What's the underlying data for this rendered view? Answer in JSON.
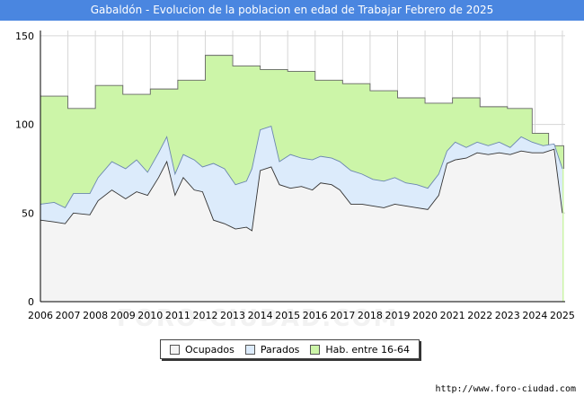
{
  "header": {
    "title": "Gabaldón - Evolucion de la poblacion en edad de Trabajar Febrero de 2025"
  },
  "footer": {
    "source": "http://www.foro-ciudad.com"
  },
  "watermark": {
    "text": "FORO-CIUDAD.COM"
  },
  "colors": {
    "ocupados": "#f4f4f4",
    "parados": "#dcebfb",
    "hab": "#ccf5a8",
    "line": "#333333",
    "title_bg": "#4a86e0"
  },
  "legend": [
    {
      "label": "Ocupados",
      "color": "#f4f4f4"
    },
    {
      "label": "Parados",
      "color": "#dcebfb"
    },
    {
      "label": "Hab. entre 16-64",
      "color": "#ccf5a8"
    }
  ],
  "chart_data": {
    "type": "area",
    "title": "Gabaldón - Evolucion de la poblacion en edad de Trabajar Febrero de 2025",
    "xlabel": "",
    "ylabel": "",
    "x_ticks": [
      "2006",
      "2007",
      "2008",
      "2009",
      "2010",
      "2011",
      "2012",
      "2013",
      "2014",
      "2015",
      "2016",
      "2017",
      "2018",
      "2019",
      "2020",
      "2021",
      "2022",
      "2023",
      "2024",
      "2025"
    ],
    "y_ticks": [
      0,
      50,
      100,
      150
    ],
    "xlim": [
      2006,
      2025.1
    ],
    "ylim": [
      0,
      153
    ],
    "grid": true,
    "legend_position": "bottom-center",
    "series": [
      {
        "name": "Hab. entre 16-64",
        "points": [
          [
            2006,
            116
          ],
          [
            2007,
            109
          ],
          [
            2008,
            122
          ],
          [
            2009,
            117
          ],
          [
            2010,
            120
          ],
          [
            2011,
            125
          ],
          [
            2012,
            139
          ],
          [
            2013,
            133
          ],
          [
            2014,
            131
          ],
          [
            2015,
            130
          ],
          [
            2016,
            125
          ],
          [
            2017,
            123
          ],
          [
            2018,
            119
          ],
          [
            2019,
            115
          ],
          [
            2020,
            112
          ],
          [
            2021,
            115
          ],
          [
            2022,
            110
          ],
          [
            2023,
            109
          ],
          [
            2023.9,
            95
          ],
          [
            2024.5,
            88
          ],
          [
            2025.05,
            75
          ]
        ]
      },
      {
        "name": "Parados",
        "points": [
          [
            2006,
            55
          ],
          [
            2006.5,
            56
          ],
          [
            2006.9,
            53
          ],
          [
            2007.2,
            61
          ],
          [
            2007.8,
            61
          ],
          [
            2008.1,
            70
          ],
          [
            2008.6,
            79
          ],
          [
            2009.1,
            75
          ],
          [
            2009.5,
            80
          ],
          [
            2009.9,
            73
          ],
          [
            2010.3,
            84
          ],
          [
            2010.6,
            93
          ],
          [
            2010.9,
            72
          ],
          [
            2011.2,
            83
          ],
          [
            2011.6,
            80
          ],
          [
            2011.9,
            76
          ],
          [
            2012.3,
            78
          ],
          [
            2012.7,
            75
          ],
          [
            2013.1,
            66
          ],
          [
            2013.5,
            68
          ],
          [
            2013.7,
            75
          ],
          [
            2014,
            97
          ],
          [
            2014.4,
            99
          ],
          [
            2014.7,
            79
          ],
          [
            2015.1,
            83
          ],
          [
            2015.5,
            81
          ],
          [
            2015.9,
            80
          ],
          [
            2016.2,
            82
          ],
          [
            2016.6,
            81
          ],
          [
            2016.9,
            79
          ],
          [
            2017.3,
            74
          ],
          [
            2017.7,
            72
          ],
          [
            2018.1,
            69
          ],
          [
            2018.5,
            68
          ],
          [
            2018.9,
            70
          ],
          [
            2019.3,
            67
          ],
          [
            2019.7,
            66
          ],
          [
            2020.1,
            64
          ],
          [
            2020.5,
            72
          ],
          [
            2020.8,
            85
          ],
          [
            2021.1,
            90
          ],
          [
            2021.5,
            87
          ],
          [
            2021.9,
            90
          ],
          [
            2022.3,
            88
          ],
          [
            2022.7,
            90
          ],
          [
            2023.1,
            87
          ],
          [
            2023.5,
            93
          ],
          [
            2023.9,
            90
          ],
          [
            2024.3,
            88
          ],
          [
            2024.7,
            89
          ],
          [
            2025,
            75
          ]
        ]
      },
      {
        "name": "Ocupados",
        "points": [
          [
            2006,
            46
          ],
          [
            2006.5,
            45
          ],
          [
            2006.9,
            44
          ],
          [
            2007.2,
            50
          ],
          [
            2007.8,
            49
          ],
          [
            2008.1,
            57
          ],
          [
            2008.6,
            63
          ],
          [
            2009.1,
            58
          ],
          [
            2009.5,
            62
          ],
          [
            2009.9,
            60
          ],
          [
            2010.3,
            70
          ],
          [
            2010.6,
            79
          ],
          [
            2010.9,
            60
          ],
          [
            2011.2,
            70
          ],
          [
            2011.6,
            63
          ],
          [
            2011.9,
            62
          ],
          [
            2012.3,
            46
          ],
          [
            2012.7,
            44
          ],
          [
            2013.1,
            41
          ],
          [
            2013.5,
            42
          ],
          [
            2013.7,
            40
          ],
          [
            2014,
            74
          ],
          [
            2014.4,
            76
          ],
          [
            2014.7,
            66
          ],
          [
            2015.1,
            64
          ],
          [
            2015.5,
            65
          ],
          [
            2015.9,
            63
          ],
          [
            2016.2,
            67
          ],
          [
            2016.6,
            66
          ],
          [
            2016.9,
            63
          ],
          [
            2017.3,
            55
          ],
          [
            2017.7,
            55
          ],
          [
            2018.1,
            54
          ],
          [
            2018.5,
            53
          ],
          [
            2018.9,
            55
          ],
          [
            2019.3,
            54
          ],
          [
            2019.7,
            53
          ],
          [
            2020.1,
            52
          ],
          [
            2020.5,
            60
          ],
          [
            2020.8,
            78
          ],
          [
            2021.1,
            80
          ],
          [
            2021.5,
            81
          ],
          [
            2021.9,
            84
          ],
          [
            2022.3,
            83
          ],
          [
            2022.7,
            84
          ],
          [
            2023.1,
            83
          ],
          [
            2023.5,
            85
          ],
          [
            2023.9,
            84
          ],
          [
            2024.3,
            84
          ],
          [
            2024.7,
            86
          ],
          [
            2025,
            50
          ]
        ]
      }
    ]
  }
}
